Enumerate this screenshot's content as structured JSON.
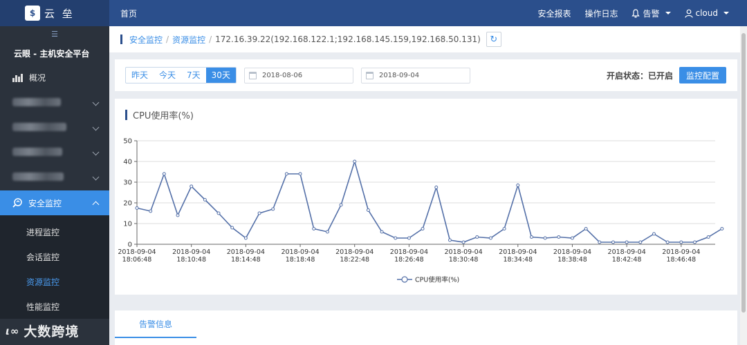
{
  "app": {
    "logo_text": "$",
    "name": "云 垒",
    "platform": "云眼 - 主机安全平台"
  },
  "topbar": {
    "home": "首页",
    "security_report": "安全报表",
    "operation_log": "操作日志",
    "alert": "告警",
    "user": "cloud"
  },
  "sidebar": {
    "overview": "概况",
    "security_monitor": "安全监控",
    "sub_items": [
      "进程监控",
      "会话监控",
      "资源监控",
      "性能监控"
    ],
    "current_sub": "资源监控"
  },
  "breadcrumb": {
    "items": [
      "安全监控",
      "资源监控"
    ],
    "host": "172.16.39.22(192.168.122.1;192.168.145.159,192.168.50.131)"
  },
  "filter": {
    "ranges": [
      "昨天",
      "今天",
      "7天",
      "30天"
    ],
    "active_range": "30天",
    "start_date": "2018-08-06",
    "end_date": "2018-09-04",
    "status": "开启状态：已开启",
    "config_button": "监控配置"
  },
  "chart_data": {
    "type": "line",
    "title": "CPU使用率(%)",
    "ylim": [
      0,
      50
    ],
    "yticks": [
      0,
      10,
      20,
      30,
      40,
      50
    ],
    "x_tick_labels": [
      [
        "2018-09-04",
        "18:06:48"
      ],
      [
        "2018-09-04",
        "18:10:48"
      ],
      [
        "2018-09-04",
        "18:14:48"
      ],
      [
        "2018-09-04",
        "18:18:48"
      ],
      [
        "2018-09-04",
        "18:22:48"
      ],
      [
        "2018-09-04",
        "18:26:48"
      ],
      [
        "2018-09-04",
        "18:30:48"
      ],
      [
        "2018-09-04",
        "18:34:48"
      ],
      [
        "2018-09-04",
        "18:38:48"
      ],
      [
        "2018-09-04",
        "18:42:48"
      ],
      [
        "2018-09-04",
        "18:46:48"
      ]
    ],
    "x_range_minutes": [
      0,
      42.5
    ],
    "series": [
      {
        "name": "CPU使用率(%)",
        "color": "#5470a8",
        "x": [
          0,
          1,
          2,
          3,
          4,
          5,
          6,
          7,
          8,
          9,
          10,
          11,
          12,
          13,
          14,
          15,
          16,
          17,
          18,
          19,
          20,
          21,
          22,
          23,
          24,
          25,
          26,
          27,
          28,
          29,
          30,
          31,
          32,
          33,
          34,
          35,
          36,
          37,
          38,
          39,
          40,
          41,
          42,
          43
        ],
        "values": [
          17.5,
          16,
          34,
          14,
          28,
          21.5,
          15,
          8,
          3,
          15,
          17,
          34,
          34,
          7.5,
          6,
          19,
          40,
          16.5,
          6,
          3,
          3,
          7.5,
          27.5,
          2,
          1,
          3.5,
          3,
          7.5,
          28.5,
          3.5,
          3,
          3.5,
          3,
          7.5,
          1,
          1,
          1,
          1,
          5,
          1,
          1,
          1,
          3.5,
          7.5
        ]
      }
    ],
    "legend": "bottom-center"
  },
  "tabs": {
    "alert_info": "告警信息"
  },
  "watermark": {
    "logo": "ι∞",
    "text": "大数跨境"
  }
}
